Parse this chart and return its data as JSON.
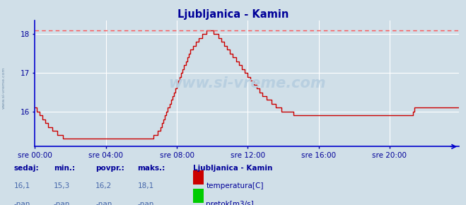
{
  "title": "Ljubljanica - Kamin",
  "title_color": "#000099",
  "bg_color": "#d0dfe8",
  "plot_bg_color": "#d0dfe8",
  "line_color": "#cc0000",
  "dashed_line_color": "#ff5555",
  "dashed_line_y": 18.1,
  "ylim": [
    15.1,
    18.35
  ],
  "yticks": [
    16,
    17,
    18
  ],
  "xlim": [
    0,
    287
  ],
  "xtick_positions": [
    0,
    48,
    96,
    144,
    192,
    240
  ],
  "xtick_labels": [
    "sre 00:00",
    "sre 04:00",
    "sre 08:00",
    "sre 12:00",
    "sre 16:00",
    "sre 20:00"
  ],
  "grid_color": "#ffffff",
  "axis_color": "#0000cc",
  "watermark": "www.si-vreme.com",
  "watermark_color": "#b8cfe0",
  "footer_label_color": "#000099",
  "footer_value_color": "#4466aa",
  "legend_title": "Ljubljanica - Kamin",
  "legend_entries": [
    "temperatura[C]",
    "pretok[m3/s]"
  ],
  "legend_colors": [
    "#cc0000",
    "#00cc00"
  ],
  "stats_labels": [
    "sedaj:",
    "min.:",
    "povpr.:",
    "maks.:"
  ],
  "stats_temp": [
    "16,1",
    "15,3",
    "16,2",
    "18,1"
  ],
  "stats_flow": [
    "-nan",
    "-nan",
    "-nan",
    "-nan"
  ],
  "temperature_data": [
    16.1,
    16.0,
    16.0,
    15.9,
    15.9,
    15.8,
    15.8,
    15.7,
    15.7,
    15.6,
    15.6,
    15.6,
    15.5,
    15.5,
    15.5,
    15.4,
    15.4,
    15.4,
    15.4,
    15.3,
    15.3,
    15.3,
    15.3,
    15.3,
    15.3,
    15.3,
    15.3,
    15.3,
    15.3,
    15.3,
    15.3,
    15.3,
    15.3,
    15.3,
    15.3,
    15.3,
    15.3,
    15.3,
    15.3,
    15.3,
    15.3,
    15.3,
    15.3,
    15.3,
    15.3,
    15.3,
    15.3,
    15.3,
    15.3,
    15.3,
    15.3,
    15.3,
    15.3,
    15.3,
    15.3,
    15.3,
    15.3,
    15.3,
    15.3,
    15.3,
    15.3,
    15.3,
    15.3,
    15.3,
    15.3,
    15.3,
    15.3,
    15.3,
    15.3,
    15.3,
    15.3,
    15.3,
    15.3,
    15.3,
    15.3,
    15.3,
    15.3,
    15.3,
    15.3,
    15.3,
    15.4,
    15.4,
    15.4,
    15.5,
    15.5,
    15.6,
    15.7,
    15.8,
    15.9,
    16.0,
    16.1,
    16.2,
    16.3,
    16.4,
    16.5,
    16.6,
    16.7,
    16.8,
    16.9,
    17.0,
    17.1,
    17.2,
    17.3,
    17.4,
    17.5,
    17.6,
    17.6,
    17.7,
    17.7,
    17.8,
    17.8,
    17.9,
    17.9,
    18.0,
    18.0,
    18.0,
    18.1,
    18.1,
    18.1,
    18.1,
    18.1,
    18.0,
    18.0,
    18.0,
    17.9,
    17.9,
    17.8,
    17.8,
    17.7,
    17.7,
    17.6,
    17.6,
    17.5,
    17.5,
    17.4,
    17.4,
    17.3,
    17.3,
    17.2,
    17.2,
    17.1,
    17.1,
    17.0,
    17.0,
    16.9,
    16.9,
    16.8,
    16.8,
    16.7,
    16.7,
    16.6,
    16.6,
    16.5,
    16.5,
    16.4,
    16.4,
    16.4,
    16.3,
    16.3,
    16.3,
    16.2,
    16.2,
    16.2,
    16.1,
    16.1,
    16.1,
    16.1,
    16.0,
    16.0,
    16.0,
    16.0,
    16.0,
    16.0,
    16.0,
    16.0,
    15.9,
    15.9,
    15.9,
    15.9,
    15.9,
    15.9,
    15.9,
    15.9,
    15.9,
    15.9,
    15.9,
    15.9,
    15.9,
    15.9,
    15.9,
    15.9,
    15.9,
    15.9,
    15.9,
    15.9,
    15.9,
    15.9,
    15.9,
    15.9,
    15.9,
    15.9,
    15.9,
    15.9,
    15.9,
    15.9,
    15.9,
    15.9,
    15.9,
    15.9,
    15.9,
    15.9,
    15.9,
    15.9,
    15.9,
    15.9,
    15.9,
    15.9,
    15.9,
    15.9,
    15.9,
    15.9,
    15.9,
    15.9,
    15.9,
    15.9,
    15.9,
    15.9,
    15.9,
    15.9,
    15.9,
    15.9,
    15.9,
    15.9,
    15.9,
    15.9,
    15.9,
    15.9,
    15.9,
    15.9,
    15.9,
    15.9,
    15.9,
    15.9,
    15.9,
    15.9,
    15.9,
    15.9,
    15.9,
    15.9,
    15.9,
    15.9,
    15.9,
    15.9,
    15.9,
    15.9,
    15.9,
    16.0,
    16.1,
    16.1,
    16.1,
    16.1,
    16.1,
    16.1,
    16.1,
    16.1,
    16.1,
    16.1,
    16.1,
    16.1,
    16.1,
    16.1,
    16.1,
    16.1,
    16.1,
    16.1,
    16.1,
    16.1,
    16.1,
    16.1,
    16.1,
    16.1,
    16.1,
    16.1,
    16.1,
    16.1,
    16.1,
    16.1,
    16.1
  ]
}
